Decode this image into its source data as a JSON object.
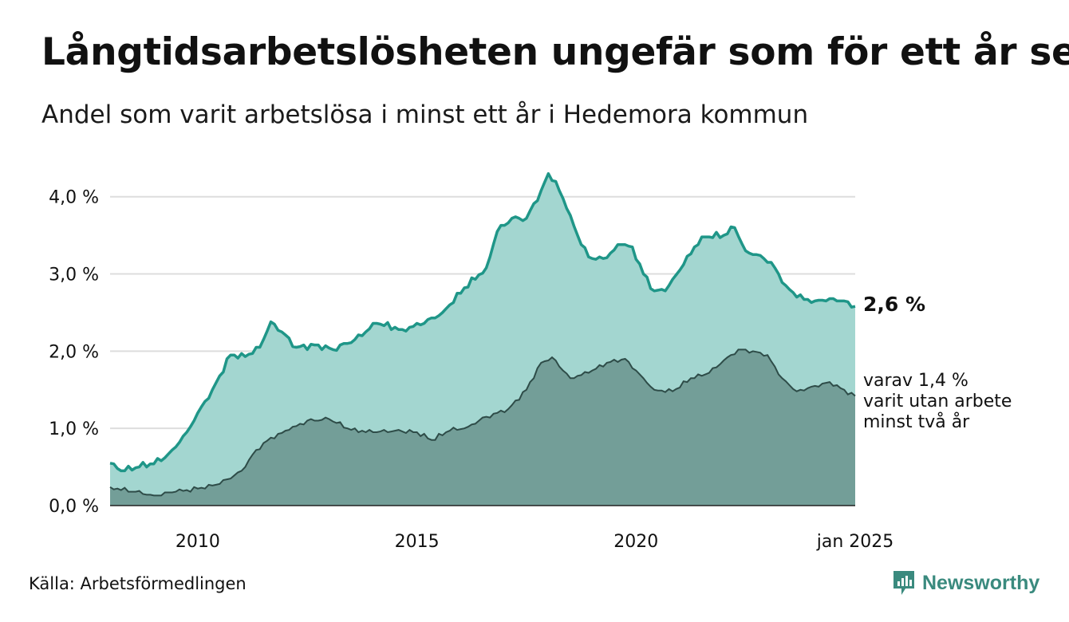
{
  "title": "Långtidsarbetslösheten ungefär som för ett år sen",
  "subtitle": "Andel som varit arbetslösa i minst ett år i Hedemora kommun",
  "source": "Källa: Arbetsförmedlingen",
  "brand": "Newsworthy",
  "colors": {
    "total_line": "#1f9688",
    "total_area": "#a3d6d0",
    "sub_line": "#2e4c48",
    "sub_area": "#739e98",
    "grid": "#dddddd",
    "brand": "#3a8a7e"
  },
  "labels": {
    "end_value": "2,6 %",
    "sub_line1": "varav 1,4 %",
    "sub_line2": "varit utan arbete",
    "sub_line3": "minst två år"
  },
  "chart_data": {
    "type": "area",
    "x_start": "2008-01",
    "x_end": "2025-01",
    "frequency": "monthly",
    "x_ticks": [
      {
        "x": "2010-01",
        "label": "2010"
      },
      {
        "x": "2015-01",
        "label": "2015"
      },
      {
        "x": "2020-01",
        "label": "2020"
      },
      {
        "x": "2025-01",
        "label": "jan 2025"
      }
    ],
    "y_ticks": [
      {
        "y": 0,
        "label": "0,0 %"
      },
      {
        "y": 1,
        "label": "1,0 %"
      },
      {
        "y": 2,
        "label": "2,0 %"
      },
      {
        "y": 3,
        "label": "3,0 %"
      },
      {
        "y": 4,
        "label": "4,0 %"
      }
    ],
    "ylim": [
      0,
      4.4
    ],
    "grid": true,
    "series": [
      {
        "values_known": [
          [
            "2008-01",
            0.55
          ],
          [
            "2008-04",
            0.45
          ],
          [
            "2008-09",
            0.5
          ],
          [
            "2009-03",
            0.58
          ],
          [
            "2009-06",
            0.72
          ],
          [
            "2009-10",
            0.95
          ],
          [
            "2010-01",
            1.2
          ],
          [
            "2010-05",
            1.5
          ],
          [
            "2010-10",
            1.95
          ],
          [
            "2011-02",
            1.93
          ],
          [
            "2011-06",
            2.05
          ],
          [
            "2011-09",
            2.38
          ],
          [
            "2011-12",
            2.25
          ],
          [
            "2012-04",
            2.05
          ],
          [
            "2012-10",
            2.08
          ],
          [
            "2013-02",
            2.02
          ],
          [
            "2013-08",
            2.15
          ],
          [
            "2014-02",
            2.36
          ],
          [
            "2014-09",
            2.28
          ],
          [
            "2015-02",
            2.34
          ],
          [
            "2015-08",
            2.5
          ],
          [
            "2016-02",
            2.82
          ],
          [
            "2016-08",
            3.08
          ],
          [
            "2016-11",
            3.55
          ],
          [
            "2017-03",
            3.72
          ],
          [
            "2017-07",
            3.72
          ],
          [
            "2017-11",
            4.08
          ],
          [
            "2018-01",
            4.3
          ],
          [
            "2018-03",
            4.2
          ],
          [
            "2018-06",
            3.85
          ],
          [
            "2018-09",
            3.5
          ],
          [
            "2018-12",
            3.22
          ],
          [
            "2019-04",
            3.2
          ],
          [
            "2019-09",
            3.38
          ],
          [
            "2019-12",
            3.35
          ],
          [
            "2020-03",
            3.0
          ],
          [
            "2020-06",
            2.78
          ],
          [
            "2020-09",
            2.78
          ],
          [
            "2021-01",
            3.05
          ],
          [
            "2021-05",
            3.35
          ],
          [
            "2021-08",
            3.48
          ],
          [
            "2022-01",
            3.5
          ],
          [
            "2022-04",
            3.6
          ],
          [
            "2022-07",
            3.3
          ],
          [
            "2022-10",
            3.25
          ],
          [
            "2023-02",
            3.15
          ],
          [
            "2023-06",
            2.85
          ],
          [
            "2023-09",
            2.7
          ],
          [
            "2024-02",
            2.65
          ],
          [
            "2024-06",
            2.68
          ],
          [
            "2024-10",
            2.65
          ],
          [
            "2025-01",
            2.58
          ]
        ],
        "values": []
      },
      {
        "values_known": [
          [
            "2008-01",
            0.24
          ],
          [
            "2008-08",
            0.18
          ],
          [
            "2009-01",
            0.13
          ],
          [
            "2009-07",
            0.18
          ],
          [
            "2010-01",
            0.22
          ],
          [
            "2010-07",
            0.28
          ],
          [
            "2011-01",
            0.45
          ],
          [
            "2011-05",
            0.72
          ],
          [
            "2011-09",
            0.88
          ],
          [
            "2012-02",
            0.98
          ],
          [
            "2012-07",
            1.1
          ],
          [
            "2013-01",
            1.12
          ],
          [
            "2013-07",
            0.98
          ],
          [
            "2014-01",
            0.95
          ],
          [
            "2014-07",
            0.97
          ],
          [
            "2015-01",
            0.95
          ],
          [
            "2015-05",
            0.85
          ],
          [
            "2015-10",
            0.97
          ],
          [
            "2016-03",
            1.02
          ],
          [
            "2016-08",
            1.15
          ],
          [
            "2017-02",
            1.25
          ],
          [
            "2017-07",
            1.5
          ],
          [
            "2017-11",
            1.85
          ],
          [
            "2018-02",
            1.92
          ],
          [
            "2018-07",
            1.65
          ],
          [
            "2018-12",
            1.72
          ],
          [
            "2019-05",
            1.85
          ],
          [
            "2019-10",
            1.9
          ],
          [
            "2020-02",
            1.7
          ],
          [
            "2020-06",
            1.5
          ],
          [
            "2020-11",
            1.48
          ],
          [
            "2021-04",
            1.65
          ],
          [
            "2021-09",
            1.72
          ],
          [
            "2022-01",
            1.88
          ],
          [
            "2022-05",
            2.02
          ],
          [
            "2022-09",
            2.0
          ],
          [
            "2023-01",
            1.95
          ],
          [
            "2023-05",
            1.65
          ],
          [
            "2023-09",
            1.48
          ],
          [
            "2024-02",
            1.55
          ],
          [
            "2024-06",
            1.6
          ],
          [
            "2024-10",
            1.5
          ],
          [
            "2025-01",
            1.42
          ]
        ],
        "values": []
      }
    ]
  }
}
